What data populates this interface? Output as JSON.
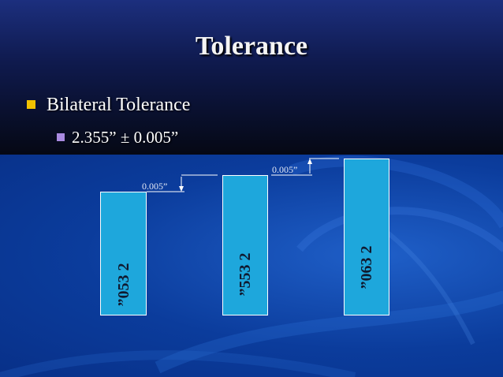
{
  "slide": {
    "title": "Tolerance",
    "bullet_1": "Bilateral Tolerance",
    "bullet_2": "2.355” ± 0.005”"
  },
  "bars": [
    {
      "label": "”053 2"
    },
    {
      "label": "”553 2"
    },
    {
      "label": "”063 2"
    }
  ],
  "dimensions": {
    "lower_tol": "0.005”",
    "upper_tol": "0.005”"
  },
  "colors": {
    "bar_fill": "#1ea7dc",
    "bullet_1_marker": "#f2c200",
    "bullet_2_marker": "#a98ae0"
  }
}
